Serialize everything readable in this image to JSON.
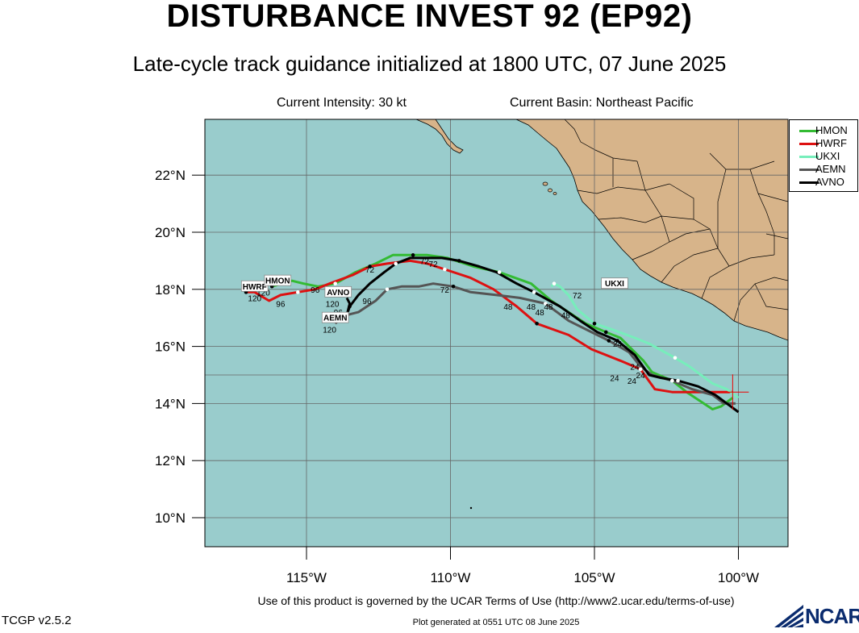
{
  "header": {
    "title": "DISTURBANCE INVEST 92 (EP92)",
    "subtitle": "Late-cycle track guidance initialized at 1800 UTC, 07 June 2025",
    "intensity": "Current Intensity: 30 kt",
    "basin": "Current Basin: Northeast Pacific"
  },
  "axes": {
    "lat_labels": [
      "10°N",
      "12°N",
      "14°N",
      "16°N",
      "18°N",
      "20°N",
      "22°N"
    ],
    "lon_labels": [
      "115°W",
      "110°W",
      "105°W",
      "100°W"
    ]
  },
  "colors": {
    "ocean": "#99cccc",
    "land": "#d7b48a",
    "HMON": "#33bb33",
    "HWRF": "#dd1111",
    "UKXI": "#77eebb",
    "AEMN": "#555555",
    "AVNO": "#000000"
  },
  "current_position": {
    "lat": 14.4,
    "lon": -100.2
  },
  "models": [
    {
      "name": "HMON",
      "points": [
        [
          -100.2,
          14.2
        ],
        [
          -100.6,
          13.9
        ],
        [
          -100.9,
          13.8
        ],
        [
          -101.8,
          14.4
        ],
        [
          -102.3,
          14.8
        ],
        [
          -103.0,
          15.1
        ],
        [
          -103.3,
          15.5
        ],
        [
          -104.1,
          16.3
        ],
        [
          -104.6,
          16.5
        ],
        [
          -105.3,
          16.8
        ],
        [
          -106.5,
          17.6
        ],
        [
          -107.2,
          18.2
        ],
        [
          -108.3,
          18.6
        ],
        [
          -109.2,
          18.8
        ],
        [
          -110.1,
          19.1
        ],
        [
          -110.8,
          19.2
        ],
        [
          -111.3,
          19.2
        ],
        [
          -112.0,
          19.2
        ],
        [
          -112.6,
          18.9
        ],
        [
          -113.3,
          18.6
        ],
        [
          -114.0,
          18.2
        ],
        [
          -114.6,
          18.1
        ],
        [
          -115.1,
          18.2
        ],
        [
          -115.5,
          18.3
        ],
        [
          -116.2,
          18.1
        ]
      ],
      "end_label": "HMON"
    },
    {
      "name": "HWRF",
      "points": [
        [
          -100.2,
          14.4
        ],
        [
          -101.1,
          14.4
        ],
        [
          -102.3,
          14.4
        ],
        [
          -102.9,
          14.5
        ],
        [
          -103.4,
          15.2
        ],
        [
          -104.1,
          15.5
        ],
        [
          -105.1,
          15.9
        ],
        [
          -105.9,
          16.4
        ],
        [
          -107.0,
          16.8
        ],
        [
          -107.7,
          17.4
        ],
        [
          -108.5,
          18.0
        ],
        [
          -109.3,
          18.4
        ],
        [
          -110.2,
          18.7
        ],
        [
          -110.8,
          18.9
        ],
        [
          -111.4,
          19.0
        ],
        [
          -112.2,
          18.9
        ],
        [
          -112.8,
          18.8
        ],
        [
          -113.4,
          18.5
        ],
        [
          -114.2,
          18.2
        ],
        [
          -114.7,
          18.0
        ],
        [
          -115.3,
          17.9
        ],
        [
          -115.9,
          17.8
        ],
        [
          -116.3,
          17.6
        ],
        [
          -116.8,
          17.9
        ],
        [
          -117.1,
          17.9
        ]
      ],
      "end_label": "HWRF"
    },
    {
      "name": "UKXI",
      "points": [
        [
          -100.0,
          14.2
        ],
        [
          -100.4,
          14.5
        ],
        [
          -100.9,
          14.7
        ],
        [
          -101.7,
          15.3
        ],
        [
          -102.2,
          15.6
        ],
        [
          -103.1,
          16.1
        ],
        [
          -103.6,
          16.3
        ],
        [
          -104.4,
          16.6
        ],
        [
          -105.0,
          16.8
        ],
        [
          -105.6,
          17.3
        ],
        [
          -105.9,
          17.8
        ],
        [
          -106.2,
          18.1
        ],
        [
          -106.4,
          18.2
        ],
        [
          -106.5,
          18.1
        ]
      ],
      "end_label": "UKXI"
    },
    {
      "name": "AEMN",
      "points": [
        [
          -100.1,
          14.0
        ],
        [
          -100.5,
          14.0
        ],
        [
          -100.9,
          14.3
        ],
        [
          -101.6,
          14.5
        ],
        [
          -102.3,
          14.8
        ],
        [
          -103.0,
          15.0
        ],
        [
          -103.4,
          15.3
        ],
        [
          -103.8,
          15.8
        ],
        [
          -104.5,
          16.2
        ],
        [
          -105.1,
          16.5
        ],
        [
          -105.9,
          16.9
        ],
        [
          -106.3,
          17.2
        ],
        [
          -106.7,
          17.5
        ],
        [
          -107.6,
          17.7
        ],
        [
          -108.4,
          17.8
        ],
        [
          -109.3,
          17.9
        ],
        [
          -109.9,
          18.1
        ],
        [
          -110.6,
          18.2
        ],
        [
          -111.1,
          18.1
        ],
        [
          -111.7,
          18.1
        ],
        [
          -112.2,
          18.0
        ],
        [
          -112.6,
          17.6
        ],
        [
          -112.9,
          17.4
        ],
        [
          -113.2,
          17.2
        ],
        [
          -113.6,
          17.1
        ],
        [
          -113.9,
          16.9
        ],
        [
          -114.0,
          16.8
        ]
      ],
      "end_label": "AEMN"
    },
    {
      "name": "AVNO",
      "points": [
        [
          -100.0,
          13.7
        ],
        [
          -100.4,
          14.0
        ],
        [
          -100.8,
          14.3
        ],
        [
          -101.4,
          14.6
        ],
        [
          -102.1,
          14.8
        ],
        [
          -102.7,
          14.9
        ],
        [
          -103.1,
          15.0
        ],
        [
          -103.6,
          15.7
        ],
        [
          -104.2,
          16.2
        ],
        [
          -104.9,
          16.5
        ],
        [
          -105.5,
          16.9
        ],
        [
          -106.2,
          17.4
        ],
        [
          -107.1,
          17.9
        ],
        [
          -107.7,
          18.2
        ],
        [
          -108.4,
          18.6
        ],
        [
          -109.0,
          18.8
        ],
        [
          -109.7,
          19.0
        ],
        [
          -110.3,
          19.1
        ],
        [
          -110.9,
          19.1
        ],
        [
          -111.4,
          19.1
        ],
        [
          -111.9,
          18.9
        ],
        [
          -112.3,
          18.6
        ],
        [
          -112.8,
          18.2
        ],
        [
          -113.2,
          17.8
        ],
        [
          -113.5,
          17.4
        ],
        [
          -113.6,
          17.1
        ],
        [
          -113.5,
          17.5
        ],
        [
          -113.6,
          17.7
        ]
      ],
      "end_label": "AVNO"
    }
  ],
  "hour_labels": [
    {
      "t": "24",
      "lon": -104.2,
      "lat": 16.1
    },
    {
      "t": "24",
      "lon": -103.6,
      "lat": 15.3
    },
    {
      "t": "24",
      "lon": -103.4,
      "lat": 15.0
    },
    {
      "t": "24",
      "lon": -104.3,
      "lat": 14.9
    },
    {
      "t": "24",
      "lon": -103.7,
      "lat": 14.8
    },
    {
      "t": "48",
      "lon": -108.0,
      "lat": 17.4
    },
    {
      "t": "48",
      "lon": -107.2,
      "lat": 17.4
    },
    {
      "t": "48",
      "lon": -106.6,
      "lat": 17.4
    },
    {
      "t": "48",
      "lon": -106.9,
      "lat": 17.2
    },
    {
      "t": "48",
      "lon": -106.0,
      "lat": 17.1
    },
    {
      "t": "72",
      "lon": -110.9,
      "lat": 19.0
    },
    {
      "t": "72",
      "lon": -110.6,
      "lat": 18.9
    },
    {
      "t": "72",
      "lon": -112.8,
      "lat": 18.7
    },
    {
      "t": "72",
      "lon": -110.2,
      "lat": 18.0
    },
    {
      "t": "72",
      "lon": -105.6,
      "lat": 17.8
    },
    {
      "t": "96",
      "lon": -114.7,
      "lat": 18.0
    },
    {
      "t": "96",
      "lon": -115.9,
      "lat": 17.5
    },
    {
      "t": "96",
      "lon": -112.9,
      "lat": 17.6
    },
    {
      "t": "96",
      "lon": -113.9,
      "lat": 17.2
    },
    {
      "t": "120",
      "lon": -116.8,
      "lat": 17.7
    },
    {
      "t": "120",
      "lon": -116.5,
      "lat": 17.9
    },
    {
      "t": "120",
      "lon": -114.1,
      "lat": 17.5
    },
    {
      "t": "120",
      "lon": -114.2,
      "lat": 16.6
    }
  ],
  "box_labels": [
    {
      "t": "HWRF",
      "lon": -116.8,
      "lat": 18.1
    },
    {
      "t": "HMON",
      "lon": -116.0,
      "lat": 18.3
    },
    {
      "t": "AVNO",
      "lon": -113.9,
      "lat": 17.9
    },
    {
      "t": "AEMN",
      "lon": -114.0,
      "lat": 17.0
    },
    {
      "t": "UKXI",
      "lon": -104.3,
      "lat": 18.2
    }
  ],
  "footer": {
    "terms": "Use of this product is governed by the UCAR Terms of Use (http://www2.ucar.edu/terms-of-use)",
    "version": "TCGP v2.5.2",
    "generated": "Plot generated at 0551 UTC   08 June 2025",
    "logo": "NCAR"
  }
}
